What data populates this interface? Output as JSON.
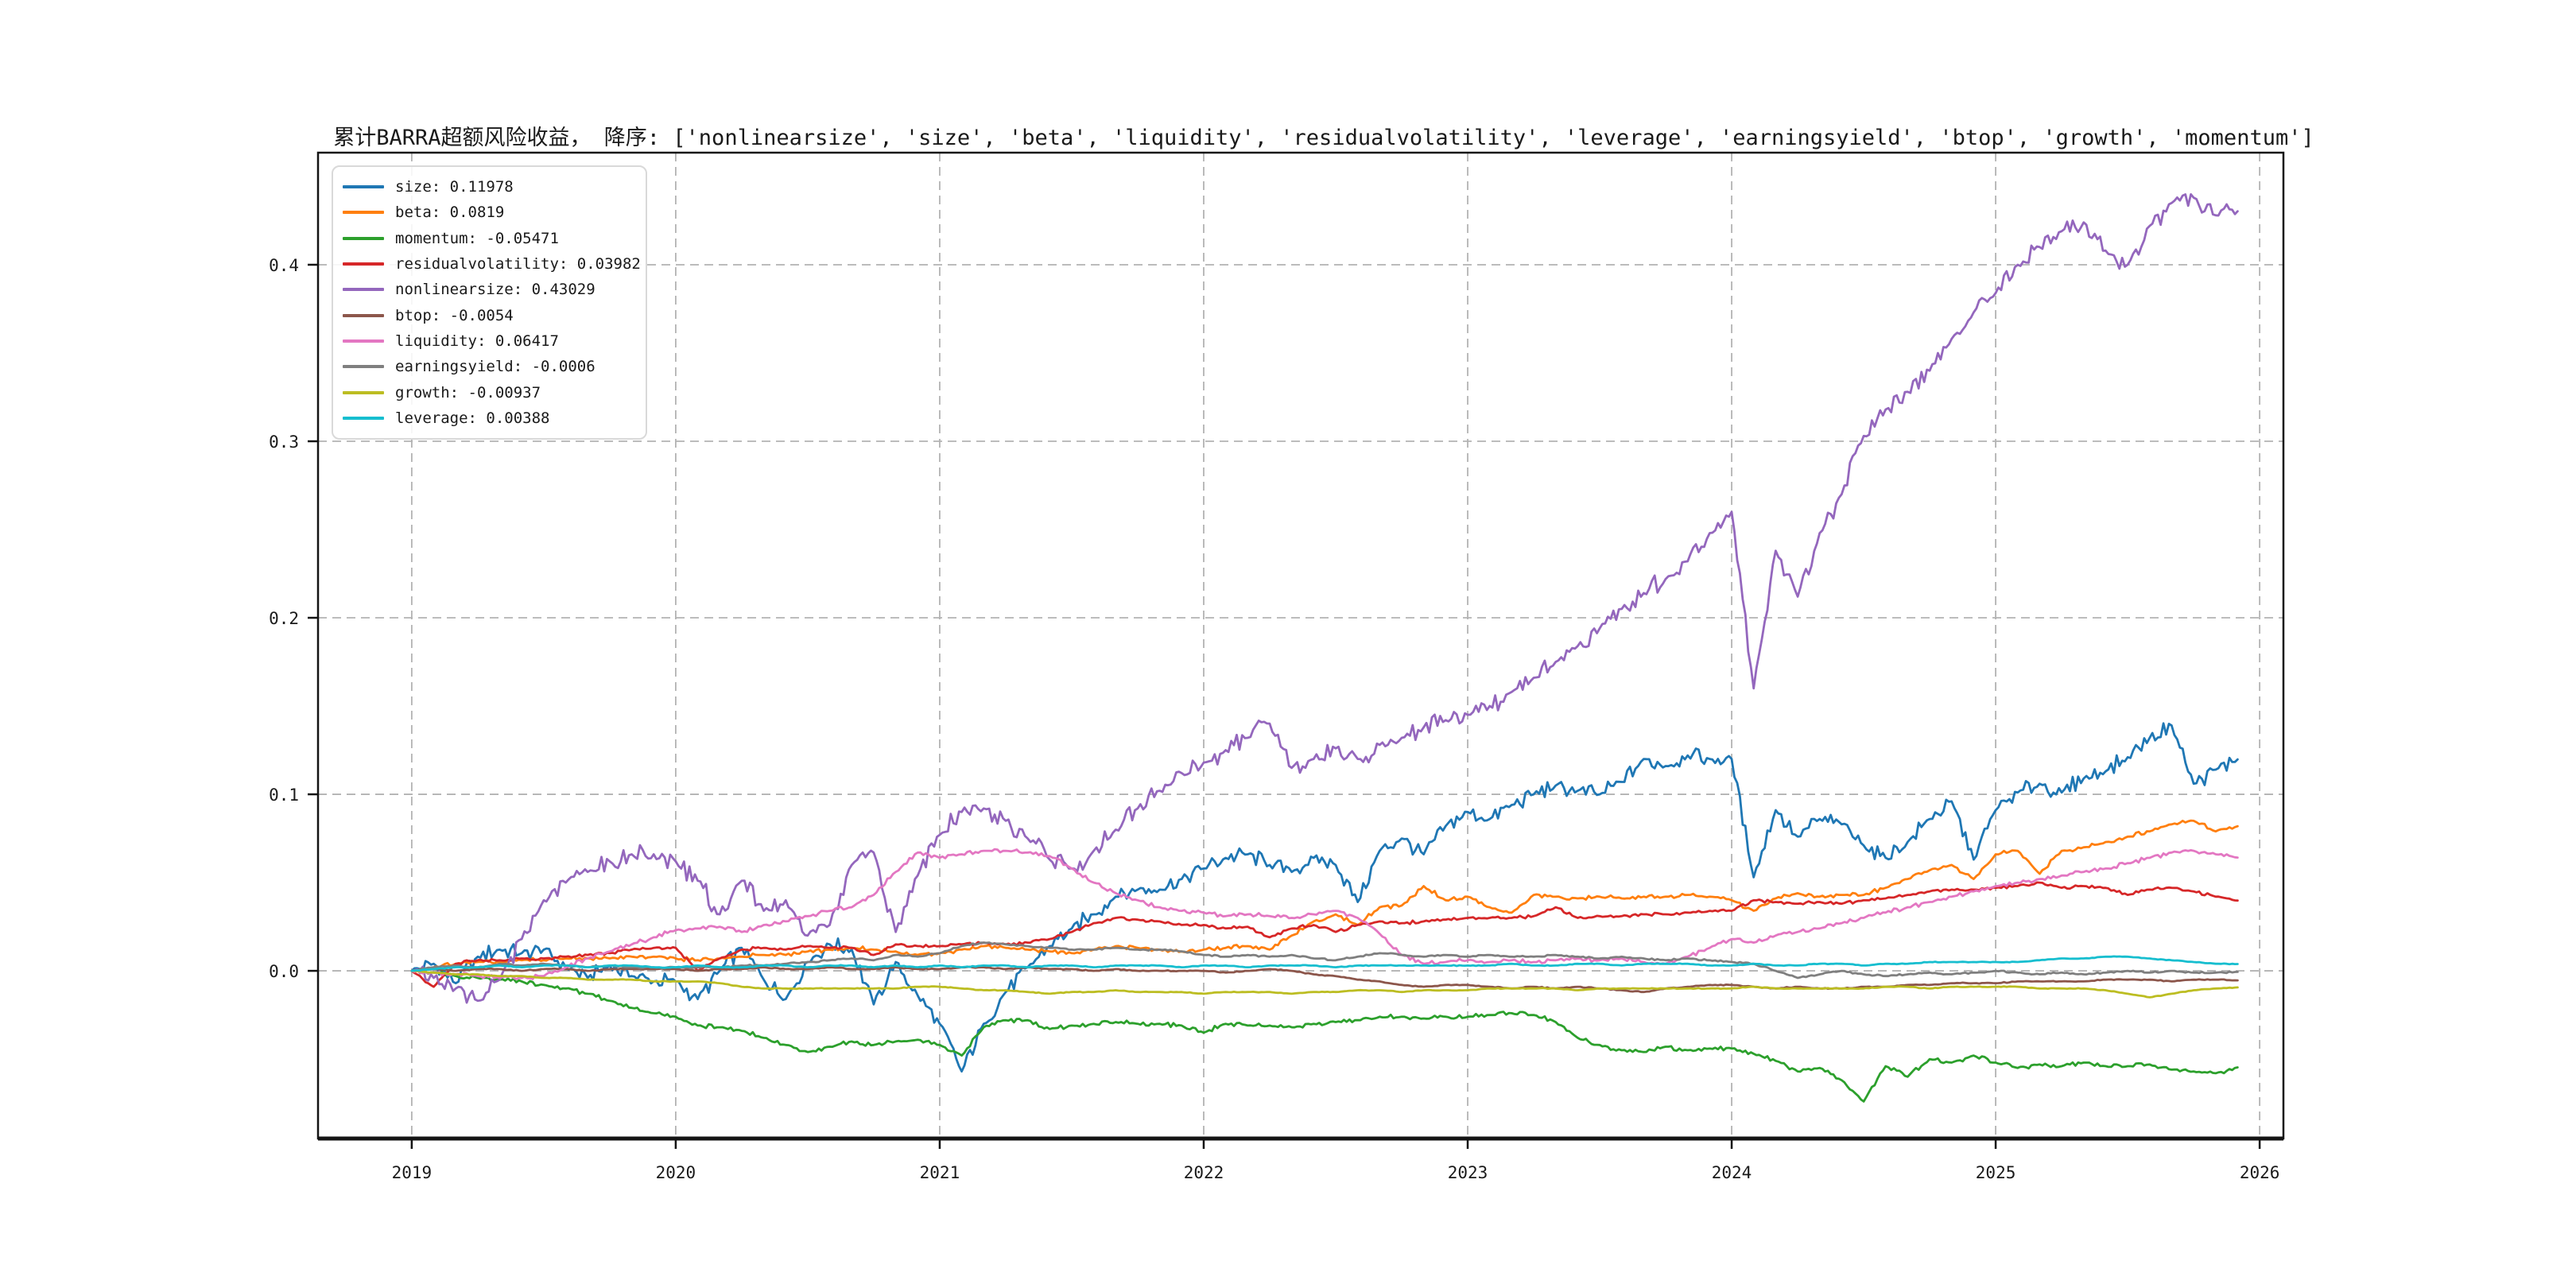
{
  "chart_data": {
    "type": "line",
    "title": "累计BARRA超额风险收益， 降序: ['nonlinearsize', 'size', 'beta', 'liquidity', 'residualvolatility', 'leverage', 'earningsyield', 'btop', 'growth', 'momentum']",
    "xlabel": "",
    "ylabel": "",
    "xlim": [
      2018.645,
      2026.09
    ],
    "ylim": [
      -0.095,
      0.4635
    ],
    "grid": "dashed",
    "legend_position": "upper left",
    "x_start": 2019.0,
    "x_step_years": 0.0833333,
    "x_ticks": [
      {
        "label": "2019",
        "value": 2019
      },
      {
        "label": "2020",
        "value": 2020
      },
      {
        "label": "2021",
        "value": 2021
      },
      {
        "label": "2022",
        "value": 2022
      },
      {
        "label": "2023",
        "value": 2023
      },
      {
        "label": "2024",
        "value": 2024
      },
      {
        "label": "2025",
        "value": 2025
      },
      {
        "label": "2026",
        "value": 2026
      }
    ],
    "y_ticks": [
      {
        "label": "0.0",
        "value": 0.0
      },
      {
        "label": "0.1",
        "value": 0.1
      },
      {
        "label": "0.2",
        "value": 0.2
      },
      {
        "label": "0.3",
        "value": 0.3
      },
      {
        "label": "0.4",
        "value": 0.4
      }
    ],
    "series": [
      {
        "name": "size",
        "color": "#1f77b4",
        "end_value": 0.11978,
        "legend_label": "size: 0.11978",
        "values": [
          0,
          0.004,
          -0.007,
          0.008,
          0.012,
          0.01,
          0.012,
          0.002,
          -0.004,
          0.003,
          -0.003,
          -0.006,
          -0.006,
          -0.016,
          0,
          0.013,
          -0.005,
          -0.016,
          0.005,
          0.015,
          0.012,
          -0.019,
          0.005,
          -0.014,
          -0.03,
          -0.057,
          -0.03,
          -0.012,
          0.002,
          0.014,
          0.024,
          0.032,
          0.042,
          0.046,
          0.046,
          0.052,
          0.058,
          0.064,
          0.066,
          0.06,
          0.056,
          0.064,
          0.06,
          0.039,
          0.068,
          0.075,
          0.066,
          0.082,
          0.09,
          0.086,
          0.094,
          0.1,
          0.105,
          0.102,
          0.1,
          0.107,
          0.12,
          0.116,
          0.122,
          0.12,
          0.12,
          0.053,
          0.091,
          0.076,
          0.086,
          0.083,
          0.071,
          0.064,
          0.073,
          0.086,
          0.096,
          0.063,
          0.091,
          0.101,
          0.106,
          0.101,
          0.109,
          0.113,
          0.121,
          0.132,
          0.139,
          0.106,
          0.114,
          0.11978
        ]
      },
      {
        "name": "beta",
        "color": "#ff7f0e",
        "end_value": 0.0819,
        "legend_label": "beta: 0.0819",
        "values": [
          0,
          0.002,
          0.004,
          0.005,
          0.005,
          0.006,
          0.006,
          0.007,
          0.007,
          0.007,
          0.008,
          0.008,
          0.007,
          0.006,
          0.007,
          0.008,
          0.009,
          0.009,
          0.011,
          0.012,
          0.013,
          0.012,
          0.011,
          0.009,
          0.01,
          0.012,
          0.014,
          0.013,
          0.012,
          0.011,
          0.01,
          0.012,
          0.014,
          0.013,
          0.012,
          0.011,
          0.012,
          0.013,
          0.014,
          0.012,
          0.02,
          0.028,
          0.032,
          0.026,
          0.036,
          0.037,
          0.048,
          0.04,
          0.042,
          0.036,
          0.033,
          0.043,
          0.042,
          0.041,
          0.042,
          0.041,
          0.042,
          0.042,
          0.043,
          0.042,
          0.04,
          0.034,
          0.041,
          0.044,
          0.042,
          0.043,
          0.043,
          0.047,
          0.052,
          0.057,
          0.06,
          0.052,
          0.066,
          0.068,
          0.055,
          0.068,
          0.07,
          0.073,
          0.076,
          0.079,
          0.083,
          0.085,
          0.079,
          0.0819
        ]
      },
      {
        "name": "momentum",
        "color": "#2ca02c",
        "end_value": -0.05471,
        "legend_label": "momentum: -0.05471",
        "values": [
          0,
          -0.001,
          -0.003,
          -0.004,
          -0.005,
          -0.006,
          -0.008,
          -0.01,
          -0.013,
          -0.017,
          -0.021,
          -0.024,
          -0.026,
          -0.031,
          -0.032,
          -0.034,
          -0.038,
          -0.042,
          -0.046,
          -0.043,
          -0.04,
          -0.042,
          -0.04,
          -0.039,
          -0.042,
          -0.048,
          -0.032,
          -0.028,
          -0.028,
          -0.033,
          -0.031,
          -0.03,
          -0.029,
          -0.03,
          -0.03,
          -0.031,
          -0.035,
          -0.03,
          -0.031,
          -0.031,
          -0.032,
          -0.03,
          -0.029,
          -0.028,
          -0.026,
          -0.026,
          -0.027,
          -0.026,
          -0.026,
          -0.025,
          -0.024,
          -0.025,
          -0.029,
          -0.038,
          -0.042,
          -0.045,
          -0.046,
          -0.043,
          -0.045,
          -0.044,
          -0.044,
          -0.047,
          -0.051,
          -0.057,
          -0.055,
          -0.062,
          -0.074,
          -0.054,
          -0.06,
          -0.05,
          -0.052,
          -0.048,
          -0.052,
          -0.055,
          -0.053,
          -0.054,
          -0.052,
          -0.054,
          -0.054,
          -0.053,
          -0.056,
          -0.057,
          -0.058,
          -0.05471
        ]
      },
      {
        "name": "residualvolatility",
        "color": "#d62728",
        "end_value": 0.03982,
        "legend_label": "residualvolatility: 0.03982",
        "values": [
          0,
          -0.009,
          0.004,
          0.006,
          0.006,
          0.007,
          0.007,
          0.008,
          0.009,
          0.01,
          0.012,
          0.013,
          0.013,
          0,
          0.007,
          0.012,
          0.013,
          0.012,
          0.014,
          0.013,
          0.013,
          0.009,
          0.015,
          0.014,
          0.014,
          0.015,
          0.016,
          0.015,
          0.016,
          0.018,
          0.022,
          0.027,
          0.03,
          0.029,
          0.028,
          0.026,
          0.026,
          0.024,
          0.025,
          0.019,
          0.024,
          0.026,
          0.022,
          0.026,
          0.028,
          0.027,
          0.028,
          0.029,
          0.03,
          0.03,
          0.03,
          0.031,
          0.036,
          0.03,
          0.031,
          0.031,
          0.032,
          0.032,
          0.033,
          0.034,
          0.034,
          0.04,
          0.039,
          0.038,
          0.039,
          0.038,
          0.04,
          0.041,
          0.043,
          0.045,
          0.046,
          0.046,
          0.047,
          0.048,
          0.05,
          0.047,
          0.048,
          0.047,
          0.043,
          0.046,
          0.047,
          0.045,
          0.042,
          0.03982
        ]
      },
      {
        "name": "nonlinearsize",
        "color": "#9467bd",
        "end_value": 0.43029,
        "legend_label": "nonlinearsize: 0.43029",
        "values": [
          0,
          -0.004,
          -0.01,
          -0.017,
          -0.005,
          0.018,
          0.04,
          0.05,
          0.056,
          0.062,
          0.066,
          0.066,
          0.062,
          0.051,
          0.032,
          0.051,
          0.034,
          0.04,
          0.02,
          0.026,
          0.06,
          0.067,
          0.022,
          0.054,
          0.077,
          0.09,
          0.092,
          0.085,
          0.075,
          0.063,
          0.058,
          0.068,
          0.08,
          0.092,
          0.102,
          0.112,
          0.118,
          0.125,
          0.132,
          0.14,
          0.115,
          0.12,
          0.126,
          0.12,
          0.128,
          0.132,
          0.138,
          0.142,
          0.145,
          0.15,
          0.158,
          0.166,
          0.175,
          0.184,
          0.194,
          0.205,
          0.214,
          0.222,
          0.232,
          0.248,
          0.26,
          0.16,
          0.238,
          0.212,
          0.248,
          0.27,
          0.303,
          0.318,
          0.328,
          0.34,
          0.358,
          0.373,
          0.384,
          0.4,
          0.41,
          0.419,
          0.424,
          0.408,
          0.4,
          0.422,
          0.435,
          0.438,
          0.428,
          0.43029
        ]
      },
      {
        "name": "btop",
        "color": "#8c564b",
        "end_value": -0.0054,
        "legend_label": "btop: -0.0054",
        "values": [
          0,
          0.001,
          0,
          0.001,
          0.001,
          0,
          0.001,
          0.001,
          0,
          0.001,
          0.001,
          0.001,
          0.001,
          0,
          0.001,
          0.001,
          0.002,
          0.001,
          0.001,
          0.002,
          0.001,
          0.001,
          0.002,
          0.001,
          0.001,
          0.002,
          0.002,
          0.001,
          0.002,
          0.001,
          0.001,
          0,
          0.001,
          0,
          0,
          0,
          0,
          -0.001,
          0,
          0.001,
          0,
          -0.002,
          -0.003,
          -0.005,
          -0.006,
          -0.008,
          -0.009,
          -0.008,
          -0.008,
          -0.009,
          -0.01,
          -0.009,
          -0.01,
          -0.009,
          -0.01,
          -0.011,
          -0.012,
          -0.01,
          -0.009,
          -0.008,
          -0.008,
          -0.009,
          -0.01,
          -0.009,
          -0.01,
          -0.01,
          -0.009,
          -0.009,
          -0.008,
          -0.008,
          -0.007,
          -0.007,
          -0.007,
          -0.006,
          -0.006,
          -0.006,
          -0.006,
          -0.005,
          -0.005,
          -0.005,
          -0.006,
          -0.005,
          -0.005,
          -0.0054
        ]
      },
      {
        "name": "liquidity",
        "color": "#e377c2",
        "end_value": 0.06417,
        "legend_label": "liquidity: 0.06417",
        "values": [
          0,
          -0.001,
          -0.002,
          -0.003,
          -0.004,
          -0.004,
          -0.003,
          0.002,
          0.007,
          0.011,
          0.015,
          0.019,
          0.023,
          0.024,
          0.025,
          0.022,
          0.026,
          0.028,
          0.031,
          0.034,
          0.036,
          0.043,
          0.056,
          0.067,
          0.064,
          0.066,
          0.068,
          0.068,
          0.067,
          0.065,
          0.058,
          0.05,
          0.044,
          0.04,
          0.036,
          0.034,
          0.033,
          0.031,
          0.032,
          0.031,
          0.03,
          0.032,
          0.034,
          0.03,
          0.021,
          0.009,
          0.004,
          0.005,
          0.006,
          0.005,
          0.006,
          0.005,
          0.006,
          0.007,
          0.006,
          0.007,
          0.005,
          0.004,
          0.008,
          0.013,
          0.018,
          0.016,
          0.02,
          0.022,
          0.024,
          0.027,
          0.03,
          0.033,
          0.036,
          0.039,
          0.042,
          0.045,
          0.048,
          0.05,
          0.052,
          0.054,
          0.056,
          0.058,
          0.061,
          0.064,
          0.067,
          0.068,
          0.066,
          0.06417
        ]
      },
      {
        "name": "earningsyield",
        "color": "#7f7f7f",
        "end_value": -0.0006,
        "legend_label": "earningsyield: -0.0006",
        "values": [
          0,
          0.002,
          0.003,
          0.002,
          0.004,
          0.003,
          0.004,
          0.003,
          0.002,
          0.003,
          0.002,
          0.002,
          0.002,
          0.002,
          0.002,
          0.003,
          0.003,
          0.004,
          0.005,
          0.006,
          0.007,
          0.006,
          0.009,
          0.008,
          0.01,
          0.014,
          0.016,
          0.015,
          0.014,
          0.013,
          0.012,
          0.012,
          0.013,
          0.012,
          0.012,
          0.011,
          0.009,
          0.008,
          0.009,
          0.008,
          0.009,
          0.007,
          0.006,
          0.008,
          0.01,
          0.009,
          0.008,
          0.009,
          0.008,
          0.009,
          0.008,
          0.008,
          0.009,
          0.008,
          0.007,
          0.008,
          0.007,
          0.006,
          0.007,
          0.006,
          0.005,
          0.004,
          0,
          -0.004,
          -0.002,
          0,
          -0.002,
          -0.003,
          -0.002,
          -0.001,
          -0.002,
          -0.001,
          0,
          -0.001,
          -0.002,
          -0.001,
          -0.002,
          -0.001,
          0,
          -0.001,
          0,
          -0.001,
          -0.001,
          -0.0006
        ]
      },
      {
        "name": "growth",
        "color": "#bcbd22",
        "end_value": -0.00937,
        "legend_label": "growth: -0.00937",
        "values": [
          0,
          -0.001,
          -0.002,
          -0.002,
          -0.003,
          -0.003,
          -0.004,
          -0.004,
          -0.005,
          -0.005,
          -0.005,
          -0.006,
          -0.006,
          -0.006,
          -0.007,
          -0.009,
          -0.01,
          -0.01,
          -0.01,
          -0.01,
          -0.01,
          -0.01,
          -0.01,
          -0.009,
          -0.009,
          -0.01,
          -0.011,
          -0.011,
          -0.012,
          -0.013,
          -0.012,
          -0.012,
          -0.011,
          -0.012,
          -0.012,
          -0.012,
          -0.013,
          -0.012,
          -0.012,
          -0.012,
          -0.013,
          -0.012,
          -0.012,
          -0.011,
          -0.011,
          -0.012,
          -0.011,
          -0.011,
          -0.011,
          -0.01,
          -0.01,
          -0.01,
          -0.01,
          -0.011,
          -0.01,
          -0.01,
          -0.01,
          -0.01,
          -0.01,
          -0.01,
          -0.01,
          -0.009,
          -0.01,
          -0.01,
          -0.01,
          -0.01,
          -0.01,
          -0.009,
          -0.009,
          -0.01,
          -0.009,
          -0.009,
          -0.009,
          -0.009,
          -0.01,
          -0.01,
          -0.01,
          -0.011,
          -0.013,
          -0.015,
          -0.013,
          -0.011,
          -0.01,
          -0.00937
        ]
      },
      {
        "name": "leverage",
        "color": "#17becf",
        "end_value": 0.00388,
        "legend_label": "leverage: 0.00388",
        "values": [
          0,
          0.001,
          0.002,
          0.002,
          0.003,
          0.002,
          0.003,
          0.003,
          0.002,
          0.003,
          0.003,
          0.002,
          0.002,
          0.003,
          0.002,
          0.002,
          0.003,
          0.003,
          0.002,
          0.003,
          0.003,
          0.002,
          0.003,
          0.002,
          0.003,
          0.002,
          0.003,
          0.003,
          0.002,
          0.003,
          0.003,
          0.002,
          0.003,
          0.003,
          0.003,
          0.002,
          0.003,
          0.003,
          0.002,
          0.003,
          0.003,
          0.003,
          0.002,
          0.003,
          0.003,
          0.003,
          0.003,
          0.003,
          0.003,
          0.003,
          0.004,
          0.003,
          0.003,
          0.004,
          0.004,
          0.003,
          0.004,
          0.004,
          0.004,
          0.003,
          0.003,
          0.004,
          0.003,
          0.003,
          0.004,
          0.004,
          0.003,
          0.004,
          0.004,
          0.005,
          0.005,
          0.005,
          0.005,
          0.005,
          0.006,
          0.007,
          0.007,
          0.008,
          0.008,
          0.007,
          0.006,
          0.005,
          0.004,
          0.00388
        ]
      }
    ]
  },
  "style_colors": {
    "grid": "#b3b3b3",
    "frame": "#141414",
    "text": "#1a1a1a",
    "legend_border": "#d9d9d9"
  }
}
